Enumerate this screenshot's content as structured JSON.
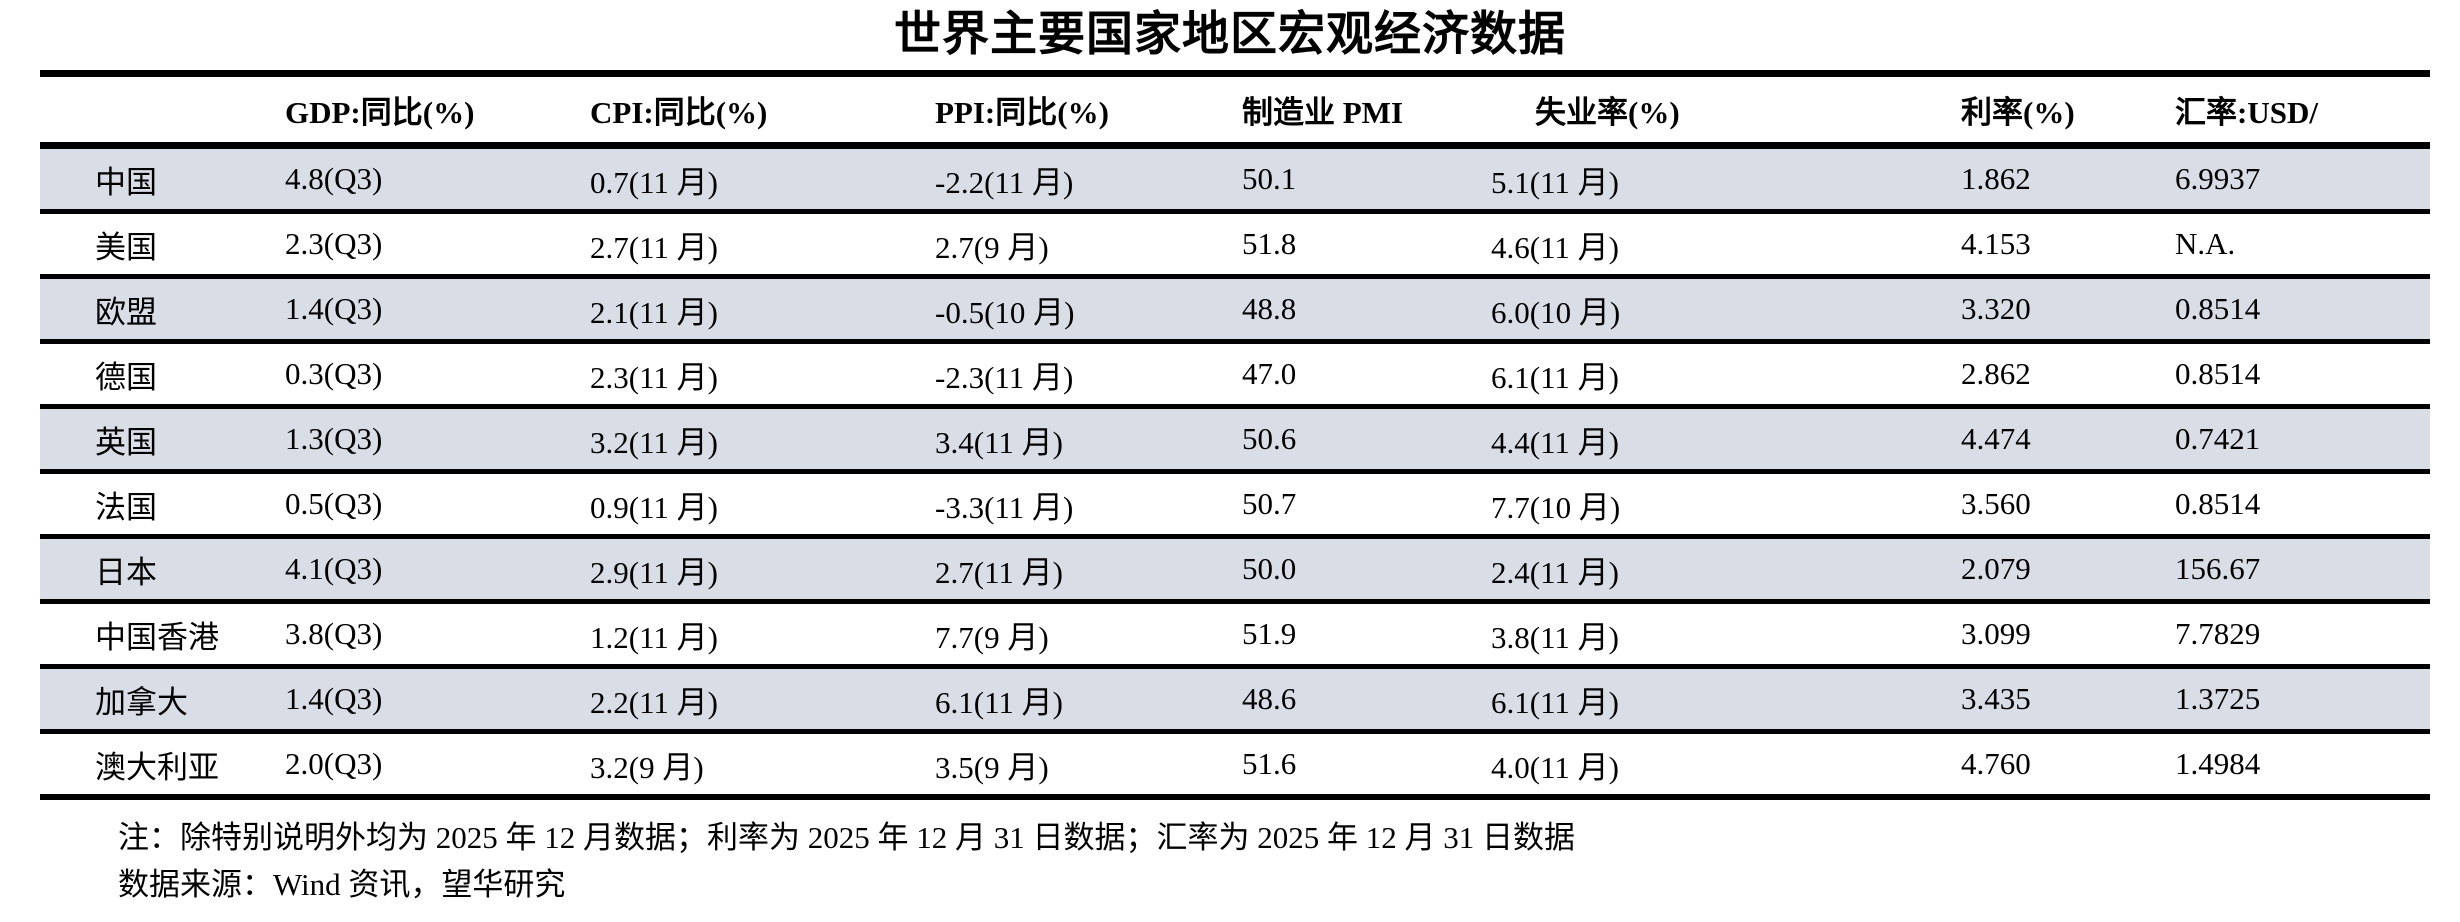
{
  "title": "世界主要国家地区宏观经济数据",
  "table": {
    "headers": {
      "region": "",
      "gdp": "GDP:同比(%)",
      "cpi": "CPI:同比(%)",
      "ppi": "PPI:同比(%)",
      "pmi": "制造业 PMI",
      "unemployment": "失业率(%)",
      "rate": "利率(%)",
      "fx": "汇率:USD/"
    },
    "rows": [
      {
        "region": "中国",
        "gdp": "4.8(Q3)",
        "cpi": "0.7(11 月)",
        "ppi": "-2.2(11 月)",
        "pmi": "50.1",
        "unemployment": "5.1(11 月)",
        "rate": "1.862",
        "fx": "6.9937"
      },
      {
        "region": "美国",
        "gdp": "2.3(Q3)",
        "cpi": "2.7(11 月)",
        "ppi": "2.7(9 月)",
        "pmi": "51.8",
        "unemployment": "4.6(11 月)",
        "rate": "4.153",
        "fx": "N.A."
      },
      {
        "region": "欧盟",
        "gdp": "1.4(Q3)",
        "cpi": "2.1(11 月)",
        "ppi": "-0.5(10 月)",
        "pmi": "48.8",
        "unemployment": "6.0(10 月)",
        "rate": "3.320",
        "fx": "0.8514"
      },
      {
        "region": "德国",
        "gdp": "0.3(Q3)",
        "cpi": "2.3(11 月)",
        "ppi": "-2.3(11 月)",
        "pmi": "47.0",
        "unemployment": "6.1(11 月)",
        "rate": "2.862",
        "fx": "0.8514"
      },
      {
        "region": "英国",
        "gdp": "1.3(Q3)",
        "cpi": "3.2(11 月)",
        "ppi": "3.4(11 月)",
        "pmi": "50.6",
        "unemployment": "4.4(11 月)",
        "rate": "4.474",
        "fx": "0.7421"
      },
      {
        "region": "法国",
        "gdp": "0.5(Q3)",
        "cpi": "0.9(11 月)",
        "ppi": "-3.3(11 月)",
        "pmi": "50.7",
        "unemployment": "7.7(10 月)",
        "rate": "3.560",
        "fx": "0.8514"
      },
      {
        "region": "日本",
        "gdp": "4.1(Q3)",
        "cpi": "2.9(11 月)",
        "ppi": "2.7(11 月)",
        "pmi": "50.0",
        "unemployment": "2.4(11 月)",
        "rate": "2.079",
        "fx": "156.67"
      },
      {
        "region": "中国香港",
        "gdp": "3.8(Q3)",
        "cpi": "1.2(11 月)",
        "ppi": "7.7(9 月)",
        "pmi": "51.9",
        "unemployment": "3.8(11 月)",
        "rate": "3.099",
        "fx": "7.7829"
      },
      {
        "region": "加拿大",
        "gdp": "1.4(Q3)",
        "cpi": "2.2(11 月)",
        "ppi": "6.1(11 月)",
        "pmi": "48.6",
        "unemployment": "6.1(11 月)",
        "rate": "3.435",
        "fx": "1.3725"
      },
      {
        "region": "澳大利亚",
        "gdp": "2.0(Q3)",
        "cpi": "3.2(9 月)",
        "ppi": "3.5(9 月)",
        "pmi": "51.6",
        "unemployment": "4.0(11 月)",
        "rate": "4.760",
        "fx": "1.4984"
      }
    ]
  },
  "notes": {
    "note": "注：除特别说明外均为 2025 年 12 月数据；利率为 2025 年 12 月 31 日数据；汇率为 2025 年 12 月 31 日数据",
    "source": "数据来源：Wind 资讯，望华研究"
  },
  "colors": {
    "stripe": "#d9dde6",
    "rule": "#000000",
    "text": "#000000",
    "background": "#ffffff"
  }
}
